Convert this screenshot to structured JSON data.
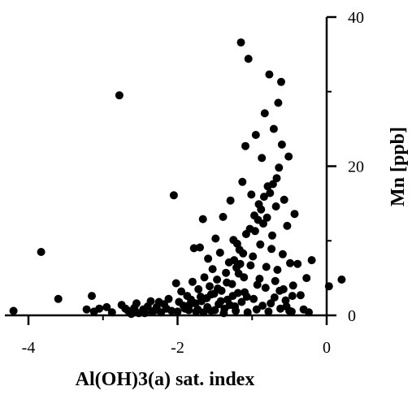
{
  "chart_data": {
    "type": "scatter",
    "xlabel": "Al(OH)3(a) sat. index",
    "ylabel": "Mn  [ppb]",
    "xlim": [
      -4.2,
      0.25
    ],
    "ylim": [
      0,
      40
    ],
    "x_ticks": [
      -4,
      -2,
      0
    ],
    "x_tick_labels": [
      "-4",
      "-2",
      "0"
    ],
    "y_ticks": [
      0,
      20,
      40
    ],
    "y_tick_labels": [
      "0",
      "20",
      "40"
    ],
    "y_axis_side": "right",
    "grid": false,
    "legend": "none",
    "marker_color": "#000000",
    "points": [
      [
        -4.2,
        0.6
      ],
      [
        -3.83,
        8.5
      ],
      [
        -3.6,
        2.2
      ],
      [
        -3.15,
        2.6
      ],
      [
        -3.22,
        0.8
      ],
      [
        -3.12,
        0.5
      ],
      [
        -3.05,
        0.9
      ],
      [
        -2.95,
        1.1
      ],
      [
        -2.88,
        0.4
      ],
      [
        -2.78,
        29.5
      ],
      [
        -2.75,
        1.4
      ],
      [
        -2.66,
        0.6
      ],
      [
        -2.58,
        1.0
      ],
      [
        -2.52,
        0.3
      ],
      [
        -2.46,
        0.8
      ],
      [
        -2.4,
        1.2
      ],
      [
        -2.34,
        0.5
      ],
      [
        -2.28,
        1.1
      ],
      [
        -2.22,
        0.4
      ],
      [
        -2.18,
        1.5
      ],
      [
        -2.12,
        2.2
      ],
      [
        -2.08,
        0.6
      ],
      [
        -2.05,
        16.1
      ],
      [
        -2.02,
        4.3
      ],
      [
        -1.98,
        1.8
      ],
      [
        -1.95,
        3.2
      ],
      [
        -1.9,
        0.9
      ],
      [
        -1.87,
        2.6
      ],
      [
        -1.84,
        1.4
      ],
      [
        -1.8,
        4.5
      ],
      [
        -1.78,
        9.0
      ],
      [
        -1.75,
        0.5
      ],
      [
        -1.72,
        3.5
      ],
      [
        -1.7,
        9.1
      ],
      [
        -1.68,
        1.9
      ],
      [
        -1.66,
        12.9
      ],
      [
        -1.64,
        5.1
      ],
      [
        -1.61,
        2.3
      ],
      [
        -1.59,
        7.6
      ],
      [
        -1.57,
        3.9
      ],
      [
        -1.55,
        0.6
      ],
      [
        -1.53,
        6.2
      ],
      [
        -1.51,
        2.9
      ],
      [
        -1.49,
        10.3
      ],
      [
        -1.47,
        4.8
      ],
      [
        -1.45,
        1.5
      ],
      [
        -1.43,
        8.4
      ],
      [
        -1.41,
        3.3
      ],
      [
        -1.39,
        13.2
      ],
      [
        -1.37,
        0.9
      ],
      [
        -1.35,
        5.7
      ],
      [
        -1.33,
        2.1
      ],
      [
        -1.31,
        7.1
      ],
      [
        -1.29,
        15.4
      ],
      [
        -1.27,
        4.2
      ],
      [
        -1.25,
        10.1
      ],
      [
        -1.23,
        1.2
      ],
      [
        -1.21,
        6.4
      ],
      [
        -1.19,
        3.0
      ],
      [
        -1.17,
        8.8
      ],
      [
        -1.15,
        36.6
      ],
      [
        -1.13,
        17.9
      ],
      [
        -1.11,
        5.1
      ],
      [
        -1.09,
        22.7
      ],
      [
        -1.07,
        2.5
      ],
      [
        -1.05,
        34.4
      ],
      [
        -1.03,
        11.6
      ],
      [
        -1.01,
        16.2
      ],
      [
        -0.99,
        7.9
      ],
      [
        -0.97,
        13.4
      ],
      [
        -0.95,
        24.2
      ],
      [
        -0.93,
        4.1
      ],
      [
        -0.91,
        14.9
      ],
      [
        -0.89,
        9.5
      ],
      [
        -0.87,
        21.1
      ],
      [
        -0.85,
        12.3
      ],
      [
        -0.83,
        27.1
      ],
      [
        -0.81,
        6.5
      ],
      [
        -0.79,
        17.3
      ],
      [
        -0.77,
        32.3
      ],
      [
        -0.75,
        1.6
      ],
      [
        -0.73,
        10.7
      ],
      [
        -0.71,
        25.0
      ],
      [
        -0.69,
        4.6
      ],
      [
        -0.67,
        18.4
      ],
      [
        -0.65,
        28.5
      ],
      [
        -0.63,
        3.3
      ],
      [
        -0.61,
        31.3
      ],
      [
        -0.59,
        8.2
      ],
      [
        -0.57,
        15.5
      ],
      [
        -0.55,
        2.0
      ],
      [
        -0.53,
        12.0
      ],
      [
        -0.51,
        21.3
      ],
      [
        -0.49,
        7.0
      ],
      [
        -0.47,
        0.5
      ],
      [
        -0.45,
        4.0
      ],
      [
        -0.43,
        13.6
      ],
      [
        -0.39,
        6.9
      ],
      [
        -0.35,
        2.7
      ],
      [
        -0.31,
        0.8
      ],
      [
        -0.27,
        5.0
      ],
      [
        -0.24,
        0.4
      ],
      [
        -0.2,
        7.4
      ],
      [
        0.03,
        3.9
      ],
      [
        0.2,
        4.8
      ],
      [
        -1.65,
        0.4
      ],
      [
        -1.6,
        1.1
      ],
      [
        -1.55,
        2.8
      ],
      [
        -1.5,
        0.7
      ],
      [
        -1.46,
        3.6
      ],
      [
        -1.42,
        1.9
      ],
      [
        -1.38,
        0.3
      ],
      [
        -1.34,
        4.4
      ],
      [
        -1.3,
        1.4
      ],
      [
        -1.26,
        2.6
      ],
      [
        -1.22,
        0.6
      ],
      [
        -1.18,
        5.6
      ],
      [
        -1.14,
        1.8
      ],
      [
        -1.1,
        3.1
      ],
      [
        -1.06,
        0.4
      ],
      [
        -1.02,
        6.7
      ],
      [
        -0.98,
        2.2
      ],
      [
        -0.94,
        0.8
      ],
      [
        -0.9,
        4.9
      ],
      [
        -0.86,
        1.3
      ],
      [
        -0.82,
        3.7
      ],
      [
        -0.78,
        0.5
      ],
      [
        -0.74,
        8.9
      ],
      [
        -0.7,
        2.4
      ],
      [
        -0.66,
        6.1
      ],
      [
        -0.62,
        0.9
      ],
      [
        -0.58,
        3.5
      ],
      [
        -0.54,
        1.2
      ],
      [
        -0.5,
        0.6
      ],
      [
        -0.46,
        2.6
      ],
      [
        -2.3,
        0.7
      ],
      [
        -2.25,
        1.8
      ],
      [
        -2.15,
        0.9
      ],
      [
        -2.0,
        0.5
      ],
      [
        -1.92,
        1.3
      ],
      [
        -1.85,
        0.7
      ],
      [
        -1.82,
        2.1
      ],
      [
        -1.76,
        1.6
      ],
      [
        -1.73,
        0.8
      ],
      [
        -1.69,
        2.5
      ],
      [
        -2.62,
        0.2
      ],
      [
        -2.7,
        0.9
      ],
      [
        -2.55,
        1.6
      ],
      [
        -2.44,
        0.3
      ],
      [
        -2.36,
        1.9
      ],
      [
        -0.88,
        14.2
      ],
      [
        -0.92,
        12.8
      ],
      [
        -0.96,
        11.3
      ],
      [
        -0.84,
        15.9
      ],
      [
        -0.8,
        13.1
      ],
      [
        -1.08,
        10.9
      ],
      [
        -1.12,
        8.3
      ],
      [
        -1.16,
        6.9
      ],
      [
        -1.2,
        9.6
      ],
      [
        -1.24,
        7.4
      ],
      [
        -0.72,
        17.6
      ],
      [
        -0.76,
        16.4
      ],
      [
        -0.68,
        14.6
      ],
      [
        -0.6,
        22.9
      ],
      [
        -0.64,
        19.8
      ]
    ]
  }
}
